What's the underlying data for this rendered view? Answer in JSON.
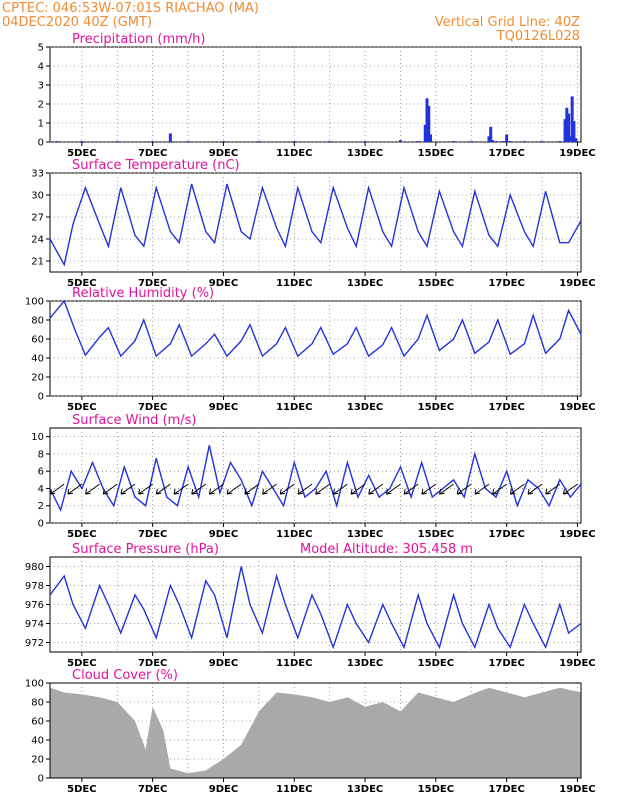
{
  "header": {
    "line1": "CPTEC:   046:53W-07:01S   RIACHAO (MA)",
    "line2": "04DEC2020 40Z (GMT)",
    "right1": "Vertical Grid Line: 40Z",
    "right2": "TQ0126L028"
  },
  "colors": {
    "header": "#f08c32",
    "title": "#e0139a",
    "line": "#2233dd",
    "bar": "#2233dd",
    "cloud": "#a9a9a9",
    "grid": "#888888"
  },
  "x_ticks": [
    "5DEC",
    "7DEC",
    "9DEC",
    "11DEC",
    "13DEC",
    "15DEC",
    "17DEC",
    "19DEC"
  ],
  "chart_data": [
    {
      "id": "precip",
      "type": "bar",
      "title": "Precipitation (mm/h)",
      "ylim": [
        0,
        5
      ],
      "yticks": [
        0,
        1,
        2,
        3,
        4,
        5
      ],
      "grid": true,
      "xlim": [
        4.1,
        19.1
      ],
      "x": [
        4.3,
        5.0,
        6.0,
        7.0,
        7.5,
        8.0,
        9.0,
        10.0,
        11.0,
        12.0,
        13.0,
        14.0,
        14.5,
        14.7,
        14.75,
        14.8,
        14.85,
        15.5,
        16.0,
        16.5,
        16.55,
        16.6,
        16.7,
        16.9,
        17.0,
        17.1,
        17.5,
        18.0,
        18.5,
        18.65,
        18.7,
        18.75,
        18.8,
        18.85,
        18.9,
        18.95,
        19.0
      ],
      "values": [
        0.05,
        0.05,
        0.05,
        0.05,
        0.45,
        0.05,
        0.05,
        0.05,
        0.05,
        0.05,
        0.05,
        0.1,
        0.05,
        0.9,
        2.3,
        1.9,
        0.4,
        0.05,
        0.05,
        0.3,
        0.8,
        0.1,
        0.05,
        0.05,
        0.4,
        0.05,
        0.05,
        0.05,
        0.05,
        1.2,
        1.8,
        1.5,
        0.3,
        2.4,
        1.1,
        0.2,
        0.05
      ]
    },
    {
      "id": "temp",
      "type": "line",
      "title": "Surface Temperature (nC)",
      "ylim": [
        19.5,
        33
      ],
      "yticks": [
        21,
        24,
        27,
        30,
        33
      ],
      "grid": true,
      "xlim": [
        4.1,
        19.1
      ],
      "x": [
        4.1,
        4.5,
        4.75,
        5.1,
        5.5,
        5.75,
        6.1,
        6.5,
        6.75,
        7.1,
        7.5,
        7.75,
        8.1,
        8.5,
        8.75,
        9.1,
        9.5,
        9.75,
        10.1,
        10.5,
        10.75,
        11.1,
        11.5,
        11.75,
        12.1,
        12.5,
        12.75,
        13.1,
        13.5,
        13.75,
        14.1,
        14.5,
        14.75,
        15.1,
        15.5,
        15.75,
        16.1,
        16.5,
        16.75,
        17.1,
        17.5,
        17.75,
        18.1,
        18.5,
        18.75,
        19.1
      ],
      "values": [
        24,
        20.5,
        26,
        31,
        26,
        23,
        31,
        24.5,
        23,
        31,
        25,
        23.5,
        31.5,
        25,
        23.5,
        31.5,
        25,
        24,
        31,
        25.5,
        23,
        31,
        25,
        23.5,
        31,
        25.5,
        23,
        31,
        25,
        23,
        31,
        25,
        23,
        30.5,
        25,
        23,
        30.5,
        24.5,
        23,
        30,
        25,
        23,
        30.5,
        23.5,
        23.5,
        26.5
      ]
    },
    {
      "id": "rh",
      "type": "line",
      "title": "Relative Humidity (%)",
      "ylim": [
        0,
        100
      ],
      "yticks": [
        0,
        20,
        40,
        60,
        80,
        100
      ],
      "grid": true,
      "xlim": [
        4.1,
        19.1
      ],
      "x": [
        4.1,
        4.5,
        4.8,
        5.1,
        5.5,
        5.75,
        6.1,
        6.5,
        6.75,
        7.1,
        7.5,
        7.75,
        8.1,
        8.5,
        8.75,
        9.1,
        9.5,
        9.75,
        10.1,
        10.5,
        10.75,
        11.1,
        11.5,
        11.75,
        12.1,
        12.5,
        12.75,
        13.1,
        13.5,
        13.75,
        14.1,
        14.5,
        14.75,
        15.1,
        15.5,
        15.75,
        16.1,
        16.5,
        16.75,
        17.1,
        17.5,
        17.75,
        18.1,
        18.5,
        18.75,
        19.1
      ],
      "values": [
        82,
        100,
        70,
        43,
        62,
        72,
        42,
        58,
        80,
        42,
        55,
        75,
        42,
        55,
        65,
        42,
        58,
        75,
        42,
        55,
        72,
        42,
        55,
        72,
        44,
        55,
        72,
        42,
        54,
        72,
        42,
        60,
        85,
        48,
        60,
        80,
        45,
        57,
        80,
        44,
        55,
        85,
        45,
        60,
        90,
        65
      ]
    },
    {
      "id": "wind",
      "type": "line",
      "title": "Surface Wind (m/s)",
      "ylim": [
        0,
        11
      ],
      "yticks": [
        0,
        2,
        4,
        6,
        8,
        10
      ],
      "grid": true,
      "xlim": [
        4.1,
        19.1
      ],
      "x": [
        4.1,
        4.4,
        4.7,
        5.0,
        5.3,
        5.6,
        5.9,
        6.2,
        6.5,
        6.8,
        7.1,
        7.4,
        7.7,
        8.0,
        8.3,
        8.6,
        8.9,
        9.2,
        9.5,
        9.8,
        10.1,
        10.4,
        10.7,
        11.0,
        11.3,
        11.6,
        11.9,
        12.2,
        12.5,
        12.8,
        13.1,
        13.4,
        13.7,
        14.0,
        14.3,
        14.6,
        14.9,
        15.2,
        15.5,
        15.8,
        16.1,
        16.4,
        16.7,
        17.0,
        17.3,
        17.6,
        17.9,
        18.2,
        18.5,
        18.8,
        19.1
      ],
      "values": [
        4,
        1.5,
        6,
        4,
        7,
        4,
        2,
        6.5,
        3,
        2,
        7.5,
        3,
        2,
        6.5,
        3,
        9,
        3.5,
        7,
        5,
        2,
        6,
        4,
        2,
        7,
        3,
        4,
        6,
        2,
        7,
        3,
        5.5,
        3,
        4,
        6.5,
        3,
        7,
        3,
        4,
        5,
        3,
        8,
        4,
        3,
        6,
        2,
        5,
        4,
        2,
        5,
        3,
        4.5
      ]
    },
    {
      "id": "pressure",
      "type": "line",
      "title": "Surface Pressure (hPa)",
      "annotation": "Model Altitude: 305.458 m",
      "ylim": [
        971,
        981
      ],
      "yticks": [
        972,
        974,
        976,
        978,
        980
      ],
      "grid": true,
      "xlim": [
        4.1,
        19.1
      ],
      "x": [
        4.1,
        4.5,
        4.75,
        5.1,
        5.5,
        5.75,
        6.1,
        6.5,
        6.75,
        7.1,
        7.5,
        7.75,
        8.1,
        8.5,
        8.75,
        9.1,
        9.5,
        9.75,
        10.1,
        10.5,
        10.75,
        11.1,
        11.5,
        11.75,
        12.1,
        12.5,
        12.75,
        13.1,
        13.5,
        13.75,
        14.1,
        14.5,
        14.75,
        15.1,
        15.5,
        15.75,
        16.1,
        16.5,
        16.75,
        17.1,
        17.5,
        17.75,
        18.1,
        18.5,
        18.75,
        19.1
      ],
      "values": [
        977,
        979,
        976,
        973.5,
        978,
        976,
        973,
        977,
        975.5,
        972.5,
        978,
        976,
        972.5,
        978.5,
        977,
        972.5,
        980,
        976,
        973,
        979,
        976,
        972.5,
        977,
        975,
        971.5,
        976,
        974,
        972,
        976,
        974,
        971.5,
        977,
        974,
        971.5,
        977,
        974,
        971.5,
        976,
        973.5,
        971.5,
        976,
        974,
        971.5,
        976,
        973,
        974
      ]
    },
    {
      "id": "cloud",
      "type": "area",
      "title": "Cloud Cover (%)",
      "ylim": [
        0,
        100
      ],
      "yticks": [
        0,
        20,
        40,
        60,
        80,
        100
      ],
      "grid": true,
      "xlim": [
        4.1,
        19.1
      ],
      "x": [
        4.1,
        4.5,
        5.0,
        5.5,
        6.0,
        6.5,
        6.8,
        7.0,
        7.3,
        7.5,
        8.0,
        8.5,
        9.0,
        9.5,
        10.0,
        10.5,
        11.0,
        11.5,
        12.0,
        12.5,
        13.0,
        13.5,
        14.0,
        14.5,
        15.0,
        15.5,
        16.0,
        16.5,
        17.0,
        17.5,
        18.0,
        18.5,
        19.1
      ],
      "values": [
        95,
        90,
        88,
        85,
        80,
        60,
        30,
        75,
        50,
        10,
        5,
        8,
        20,
        35,
        70,
        90,
        88,
        85,
        80,
        85,
        75,
        80,
        70,
        90,
        85,
        80,
        88,
        95,
        90,
        85,
        90,
        95,
        90
      ]
    }
  ]
}
